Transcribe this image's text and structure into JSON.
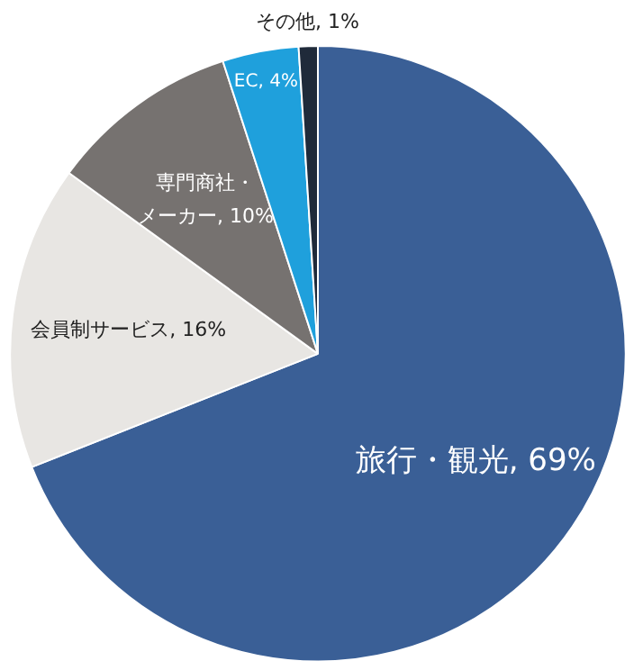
{
  "chart_data": {
    "type": "pie",
    "categories": [
      "旅行・観光",
      "会員制サービス",
      "専門商社・メーカー",
      "EC",
      "その他"
    ],
    "values": [
      69,
      16,
      10,
      4,
      1
    ],
    "value_labels": [
      "69%",
      "16%",
      "10%",
      "4%",
      "1%"
    ],
    "colors": [
      "#3a5f96",
      "#e8e6e3",
      "#767270",
      "#1fa0dc",
      "#1f2a3a"
    ],
    "legend": false
  }
}
